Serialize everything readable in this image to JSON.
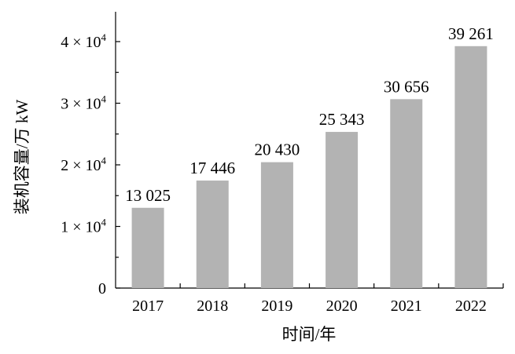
{
  "chart_data": {
    "type": "bar",
    "categories": [
      "2017",
      "2018",
      "2019",
      "2020",
      "2021",
      "2022"
    ],
    "values": [
      13025,
      17446,
      20430,
      25343,
      30656,
      39261
    ],
    "data_labels": [
      "13 025",
      "17 446",
      "20 430",
      "25 343",
      "30 656",
      "39 261"
    ],
    "xlabel": "时间/年",
    "ylabel": "装机容量/万 kW",
    "ylim": [
      0,
      40000
    ],
    "y_ticks": [
      {
        "value": 0,
        "mantissa": "0",
        "exp": ""
      },
      {
        "value": 10000,
        "mantissa": "1 × 10",
        "exp": "4"
      },
      {
        "value": 20000,
        "mantissa": "2 × 10",
        "exp": "4"
      },
      {
        "value": 30000,
        "mantissa": "3 × 10",
        "exp": "4"
      },
      {
        "value": 40000,
        "mantissa": "4 × 10",
        "exp": "4"
      }
    ],
    "bar_color": "#b3b3b3",
    "grid": false,
    "legend": "none"
  }
}
